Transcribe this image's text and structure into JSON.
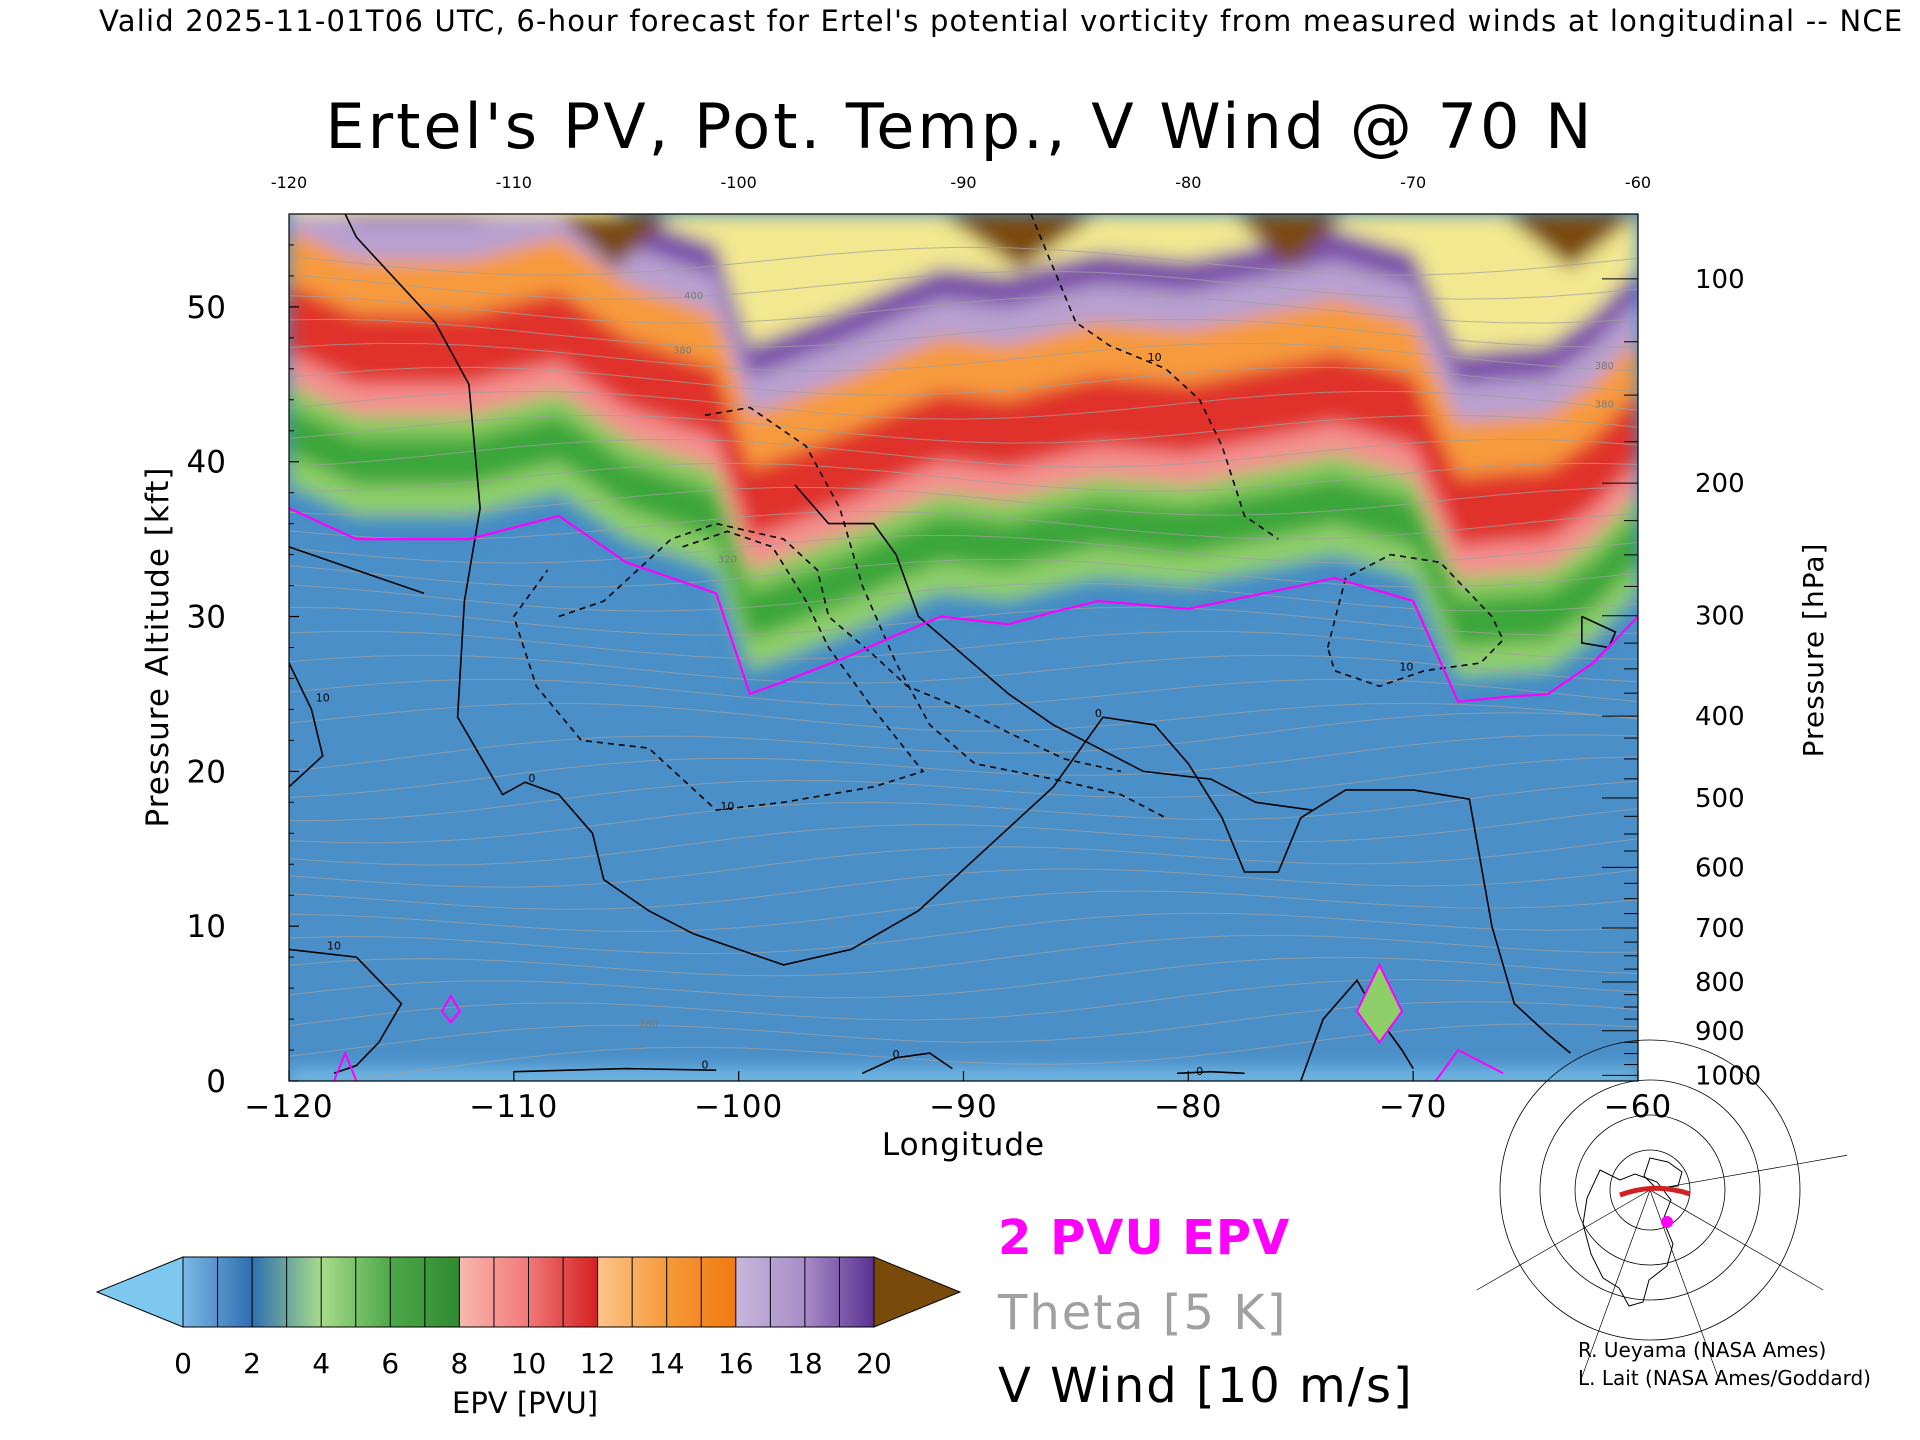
{
  "header": {
    "valid_line": "Valid 2025-11-01T06 UTC, 6-hour forecast for Ertel's potential vorticity from measured winds at longitudinal -- NCE",
    "title": "Ertel's PV, Pot. Temp., V Wind @ 70 N"
  },
  "legend": {
    "pvu_line": "2 PVU EPV",
    "theta_line": "Theta [5 K]",
    "vwind_line": "V Wind [10 m/s]"
  },
  "colorbar": {
    "title": "EPV [PVU]",
    "ticks": [
      "0",
      "2",
      "4",
      "6",
      "8",
      "10",
      "12",
      "14",
      "16",
      "18",
      "20"
    ],
    "min_arrow_color": "#7ec8f0",
    "max_arrow_color": "#7a4a0a"
  },
  "credits": {
    "line1": "R. Ueyama (NASA Ames)",
    "line2": "L. Lait (NASA Ames/Goddard)"
  },
  "colors": {
    "pv_2_contour": "#ff00ff",
    "theta_contour": "#a0a0a0",
    "vwind_contour": "#000000"
  },
  "chart_data": {
    "type": "heatmap",
    "title": "Ertel's PV, Pot. Temp., V Wind @ 70 N",
    "xlabel": "Longitude",
    "ylabel_left": "Pressure Altitude [kft]",
    "ylabel_right": "Pressure [hPa]",
    "xlim": [
      -120,
      -60
    ],
    "ylim": [
      0,
      56
    ],
    "x_ticks_bottom": [
      "-120",
      "-110",
      "-100",
      "-90",
      "-80",
      "-70",
      "-60"
    ],
    "x_ticks_top": [
      "-120",
      "-110",
      "-100",
      "-90",
      "-80",
      "-70",
      "-60"
    ],
    "y_ticks_left": [
      "0",
      "10",
      "20",
      "30",
      "40",
      "50"
    ],
    "y_ticks_right": [
      "1000",
      "900",
      "800",
      "700",
      "600",
      "500",
      "400",
      "300",
      "200",
      "100"
    ],
    "colorbar_range": [
      0,
      20
    ],
    "colorbar_step": 2,
    "contour_labels": {
      "theta": [
        "280",
        "320",
        "380",
        "380",
        "380",
        "400"
      ],
      "vwind": [
        "0",
        "0",
        "0",
        "0",
        "0",
        "10",
        "10",
        "10",
        "10",
        "10"
      ]
    },
    "pv2_boundary": {
      "x": [
        -120,
        -117,
        -112,
        -108,
        -105,
        -103,
        -101,
        -99.5,
        -98,
        -95,
        -93,
        -91,
        -88,
        -86,
        -84,
        -80,
        -75,
        -73.5,
        -70,
        -68,
        -66,
        -64,
        -62,
        -60
      ],
      "y": [
        37,
        35,
        35,
        36.5,
        33.5,
        32.5,
        31.5,
        25,
        25.8,
        27.5,
        28.8,
        30,
        29.5,
        30.3,
        31,
        30.5,
        32,
        32.5,
        31,
        24.5,
        24.8,
        25,
        27,
        30
      ]
    }
  }
}
